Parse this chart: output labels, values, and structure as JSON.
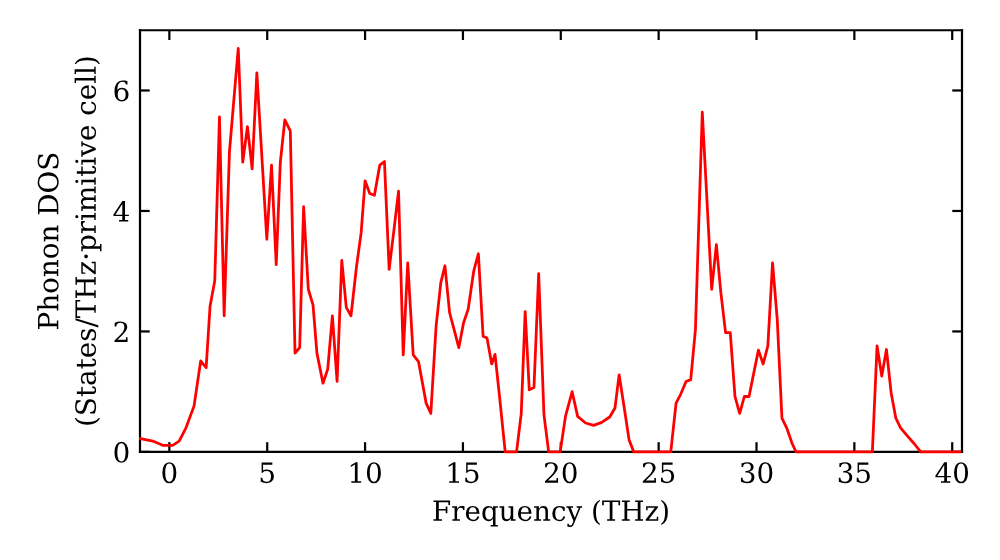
{
  "chart_data": {
    "type": "line",
    "xlabel": "Frequency (THz)",
    "ylabel": "Phonon DOS\n(States/THz·primitive cell)",
    "xlim": [
      -1.5,
      40.5
    ],
    "ylim": [
      0,
      7
    ],
    "xticks": [
      0,
      5,
      10,
      15,
      20,
      25,
      30,
      35,
      40
    ],
    "yticks": [
      0,
      2,
      4,
      6
    ],
    "grid": false,
    "legend": false,
    "marker": "none",
    "line_style": "solid",
    "series": [
      {
        "color": "#ff0000",
        "x": [
          -1.47,
          -0.85,
          -0.34,
          0.17,
          0.5,
          0.85,
          1.26,
          1.6,
          1.88,
          2.08,
          2.32,
          2.56,
          2.8,
          3.07,
          3.52,
          3.75,
          3.99,
          4.23,
          4.47,
          4.98,
          5.22,
          5.46,
          5.67,
          5.9,
          6.18,
          6.42,
          6.66,
          6.86,
          7.1,
          7.34,
          7.54,
          7.85,
          8.09,
          8.33,
          8.57,
          8.81,
          9.04,
          9.28,
          9.56,
          9.8,
          10.0,
          10.24,
          10.48,
          10.75,
          10.99,
          11.23,
          11.47,
          11.71,
          11.95,
          12.18,
          12.46,
          12.73,
          13.12,
          13.36,
          13.63,
          13.87,
          14.08,
          14.32,
          14.59,
          14.79,
          15.03,
          15.27,
          15.55,
          15.79,
          16.03,
          16.23,
          16.47,
          16.64,
          16.88,
          17.16,
          17.74,
          17.98,
          18.18,
          18.39,
          18.63,
          18.87,
          19.14,
          19.38,
          19.97,
          20.24,
          20.58,
          20.86,
          21.27,
          21.68,
          22.09,
          22.5,
          22.77,
          22.98,
          23.22,
          23.49,
          23.73,
          25.62,
          25.89,
          26.13,
          26.4,
          26.64,
          26.88,
          27.23,
          27.71,
          27.95,
          28.18,
          28.42,
          28.66,
          28.9,
          29.14,
          29.38,
          29.62,
          29.86,
          30.1,
          30.34,
          30.58,
          30.82,
          31.06,
          31.3,
          31.54,
          31.82,
          32.02,
          35.92,
          36.16,
          36.4,
          36.64,
          36.88,
          37.12,
          37.36,
          37.64,
          38.05,
          38.39,
          40.38
        ],
        "values": [
          0.22,
          0.18,
          0.11,
          0.11,
          0.18,
          0.4,
          0.76,
          1.51,
          1.4,
          2.42,
          2.84,
          5.56,
          2.26,
          4.98,
          6.7,
          4.81,
          5.4,
          4.7,
          6.29,
          3.53,
          4.76,
          3.11,
          4.81,
          5.51,
          5.33,
          1.64,
          1.73,
          4.07,
          2.7,
          2.44,
          1.64,
          1.14,
          1.37,
          2.26,
          1.17,
          3.18,
          2.4,
          2.26,
          3.07,
          3.64,
          4.5,
          4.29,
          4.26,
          4.76,
          4.82,
          3.03,
          3.67,
          4.33,
          1.61,
          3.14,
          1.61,
          1.5,
          0.81,
          0.64,
          2.09,
          2.81,
          3.09,
          2.31,
          1.98,
          1.73,
          2.14,
          2.37,
          3.0,
          3.29,
          1.92,
          1.89,
          1.46,
          1.62,
          0.89,
          0,
          0,
          0.64,
          2.33,
          1.03,
          1.07,
          2.96,
          0.62,
          0,
          0,
          0.59,
          1.0,
          0.59,
          0.48,
          0.44,
          0.49,
          0.58,
          0.73,
          1.28,
          0.78,
          0.2,
          0,
          0,
          0.81,
          0.96,
          1.17,
          1.2,
          2.03,
          5.64,
          2.7,
          3.44,
          2.64,
          1.98,
          1.98,
          0.92,
          0.64,
          0.92,
          0.92,
          1.31,
          1.69,
          1.46,
          1.76,
          3.14,
          2.2,
          0.56,
          0.4,
          0.14,
          0,
          0,
          1.76,
          1.26,
          1.7,
          0.98,
          0.56,
          0.4,
          0.29,
          0.14,
          0,
          0
        ]
      }
    ]
  }
}
